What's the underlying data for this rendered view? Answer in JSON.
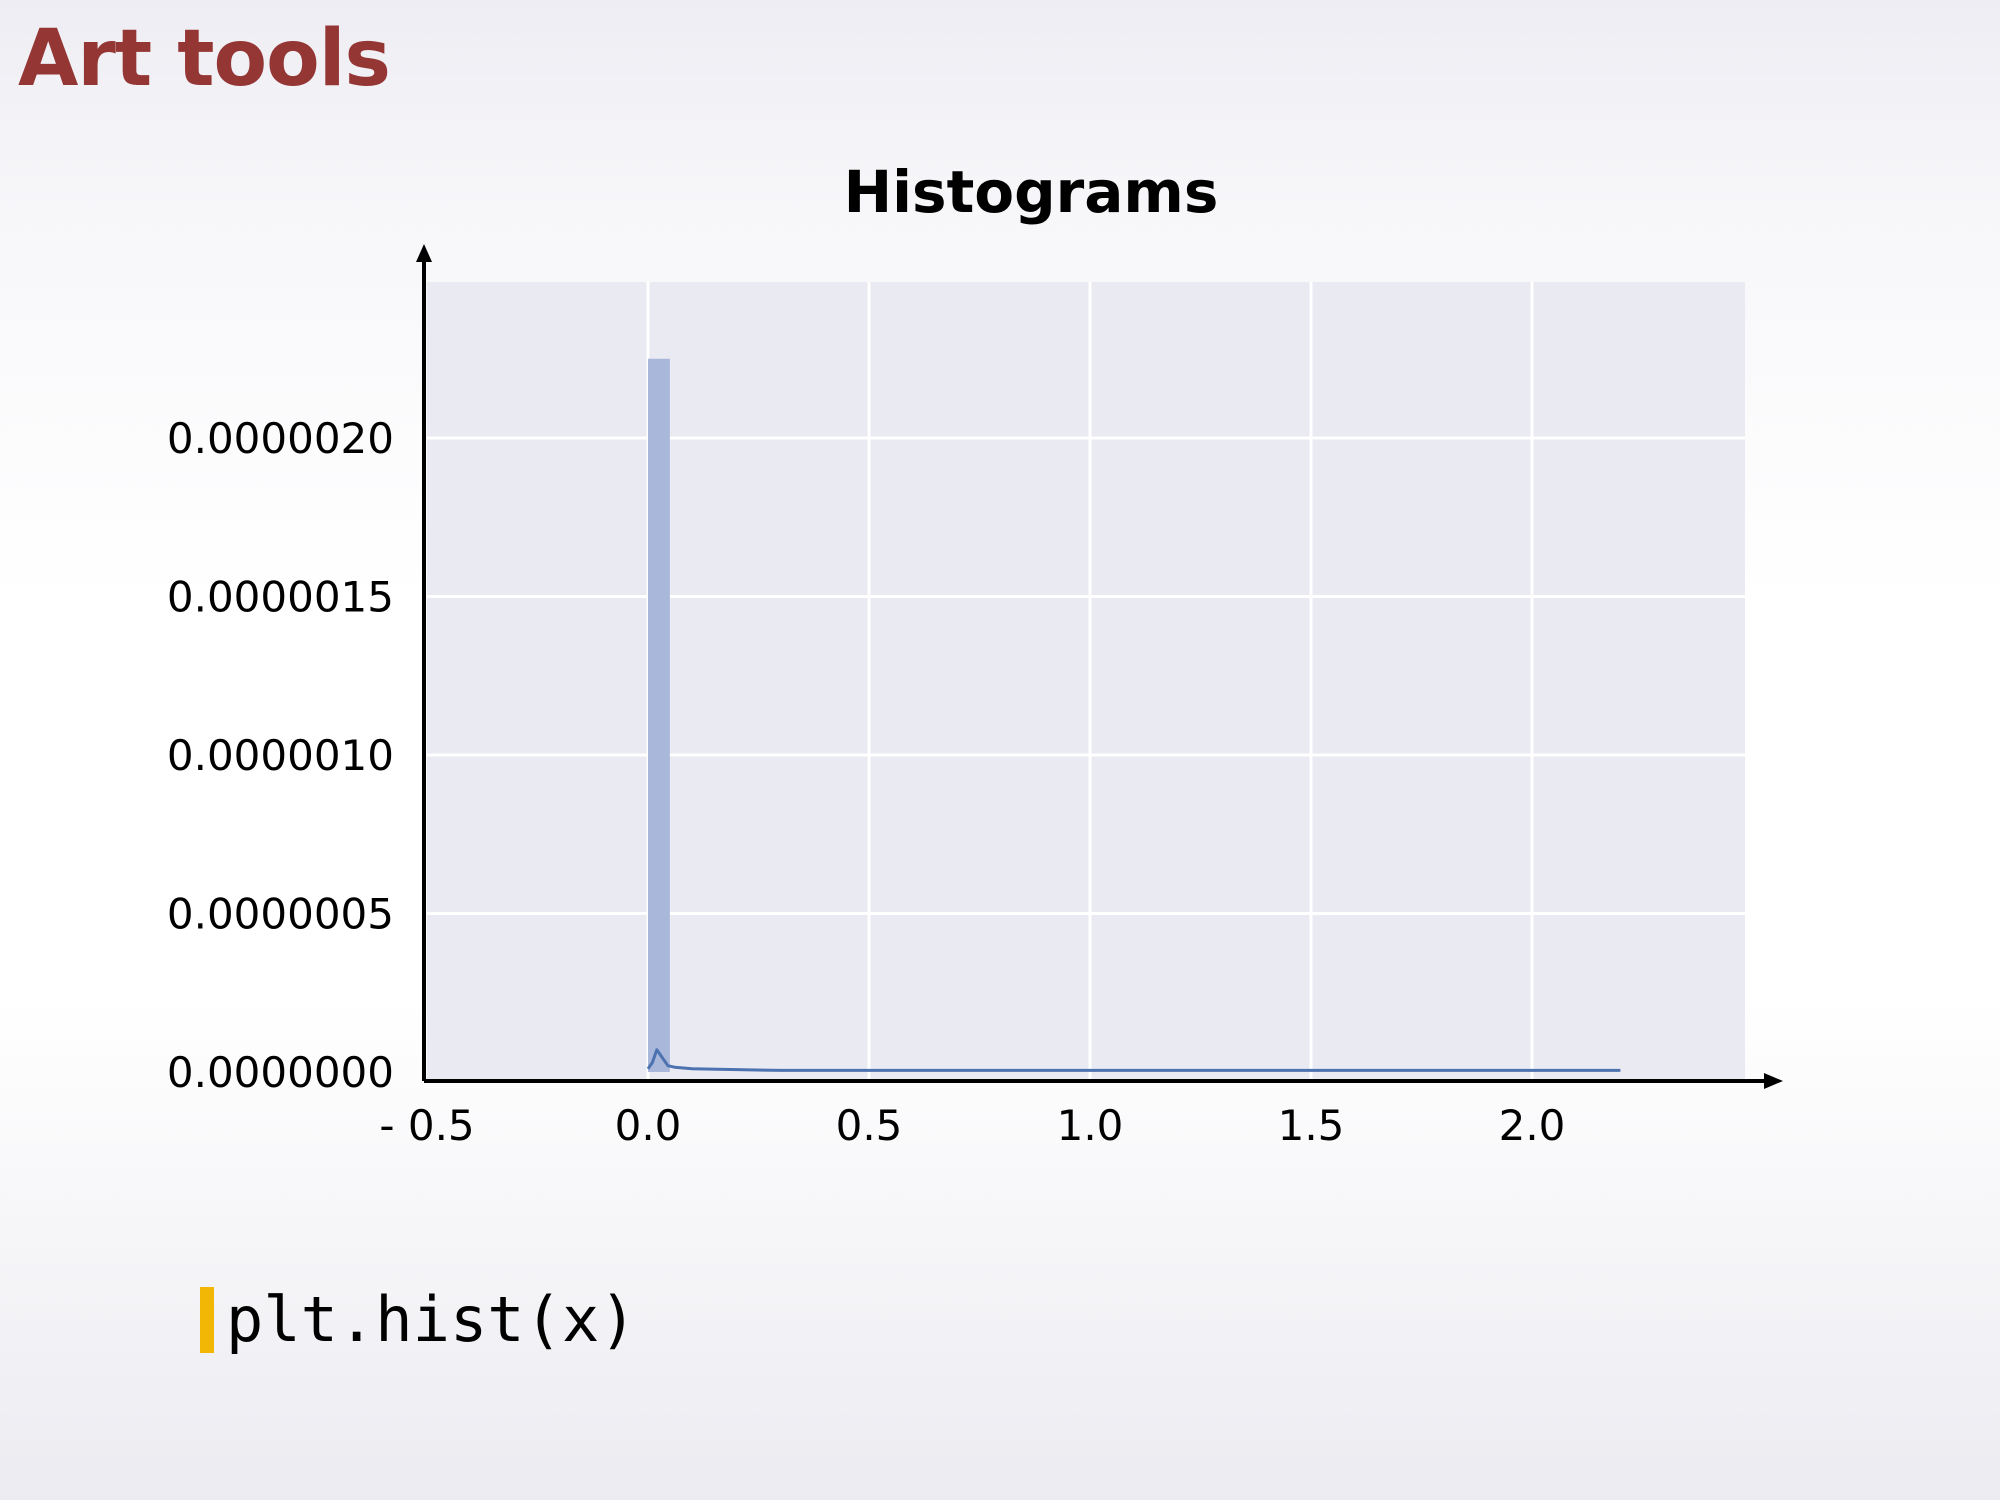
{
  "slide": {
    "title": "Art tools",
    "code": "plt.hist(x)"
  },
  "colors": {
    "title": "#943634",
    "plot_background": "#eaeaf2",
    "bar": "#a9b8da",
    "kde_line": "#4c72b0",
    "code_accent": "#f2b705"
  },
  "chart_data": {
    "type": "bar",
    "title": "Histograms",
    "xlabel": "",
    "ylabel": "",
    "xlim": [
      -0.5,
      2.5
    ],
    "ylim": [
      0,
      2.5e-06
    ],
    "x_ticks": [
      -0.5,
      0.0,
      0.5,
      1.0,
      1.5,
      2.0
    ],
    "x_tick_labels": [
      "- 0.5",
      "0.0",
      "0.5",
      "1.0",
      "1.5",
      "2.0"
    ],
    "y_ticks": [
      0,
      5e-07,
      1e-06,
      1.5e-06,
      2e-06
    ],
    "y_tick_labels": [
      "0.0000000",
      "0.0000005",
      "0.0000010",
      "0.0000015",
      "0.0000020"
    ],
    "grid": true,
    "bins": [
      {
        "x0": 0.0,
        "x1": 0.045,
        "value": 2.25e-06
      }
    ],
    "kde": {
      "x": [
        0.0,
        0.01,
        0.02,
        0.03,
        0.045,
        0.06,
        0.1,
        0.3,
        1.0,
        2.0,
        2.2
      ],
      "y": [
        1e-08,
        3e-08,
        7e-08,
        5e-08,
        2e-08,
        1.5e-08,
        1e-08,
        5e-09,
        5e-09,
        5e-09,
        5e-09
      ]
    }
  }
}
